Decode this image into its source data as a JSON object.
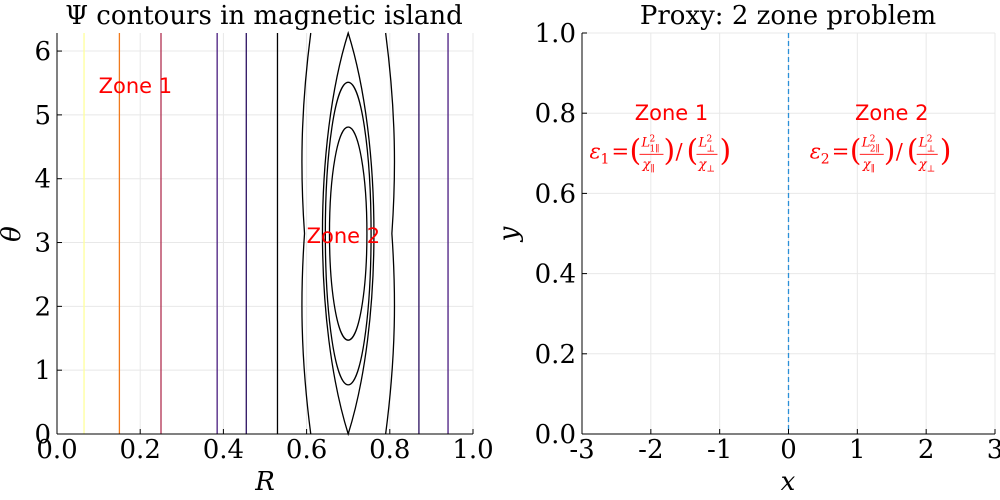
{
  "chart_data": [
    {
      "type": "contour",
      "title": "Ψ contours in magnetic island",
      "xlabel": "R",
      "ylabel": "θ",
      "xlim": [
        0.0,
        1.0
      ],
      "ylim": [
        0.0,
        6.283
      ],
      "xticks": [
        "0.0",
        "0.2",
        "0.4",
        "0.6",
        "0.8",
        "1.0"
      ],
      "yticks": [
        "0",
        "1",
        "2",
        "3",
        "4",
        "5",
        "6"
      ],
      "grid": true,
      "vertical_lines": [
        {
          "x": 0.065,
          "color": "#ffff9c"
        },
        {
          "x": 0.15,
          "color": "#f07a1c"
        },
        {
          "x": 0.25,
          "color": "#b03050"
        },
        {
          "x": 0.385,
          "color": "#4a1c80"
        },
        {
          "x": 0.455,
          "color": "#2a1060"
        },
        {
          "x": 0.53,
          "color": "#000000"
        },
        {
          "x": 0.87,
          "color": "#2a1060"
        },
        {
          "x": 0.94,
          "color": "#4a1c80"
        }
      ],
      "island": {
        "center_R": 0.7,
        "center_theta": 3.14,
        "closed_contours": [
          {
            "half_width": 0.045,
            "half_height": 1.67
          },
          {
            "half_width": 0.055,
            "half_height": 2.37
          }
        ],
        "separatrix_half_width": 0.075,
        "outer_wavy_contours": [
          {
            "R": 0.61,
            "amp": 0.025
          },
          {
            "R": 0.79,
            "amp": -0.025
          }
        ]
      },
      "annotations": [
        {
          "text": "Zone 1",
          "x": 0.1,
          "y": 5.45
        },
        {
          "text": "Zone 2",
          "x": 0.6,
          "y": 3.1
        }
      ]
    },
    {
      "type": "line",
      "title": "Proxy: 2 zone problem",
      "xlabel": "x",
      "ylabel": "y",
      "xlim": [
        -3.0,
        3.0
      ],
      "ylim": [
        0.0,
        1.0
      ],
      "xticks": [
        "-3",
        "-2",
        "-1",
        "0",
        "1",
        "2",
        "3"
      ],
      "yticks": [
        "0.0",
        "0.2",
        "0.4",
        "0.6",
        "0.8",
        "1.0"
      ],
      "grid": true,
      "vertical_lines": [
        {
          "x": 0.0,
          "color": "#2a8fd8",
          "style": "dashed"
        }
      ],
      "annotations": [
        {
          "text": "Zone 1",
          "x": -1.7,
          "y": 0.8
        },
        {
          "text": "Zone 2",
          "x": 1.5,
          "y": 0.8
        }
      ],
      "equations": [
        {
          "lhs": "ε",
          "lhs_sub": "1",
          "par_sub": "1∥",
          "x": -1.7,
          "y": 0.7
        },
        {
          "lhs": "ε",
          "lhs_sub": "2",
          "par_sub": "2∥",
          "x": 1.5,
          "y": 0.7
        }
      ]
    }
  ]
}
